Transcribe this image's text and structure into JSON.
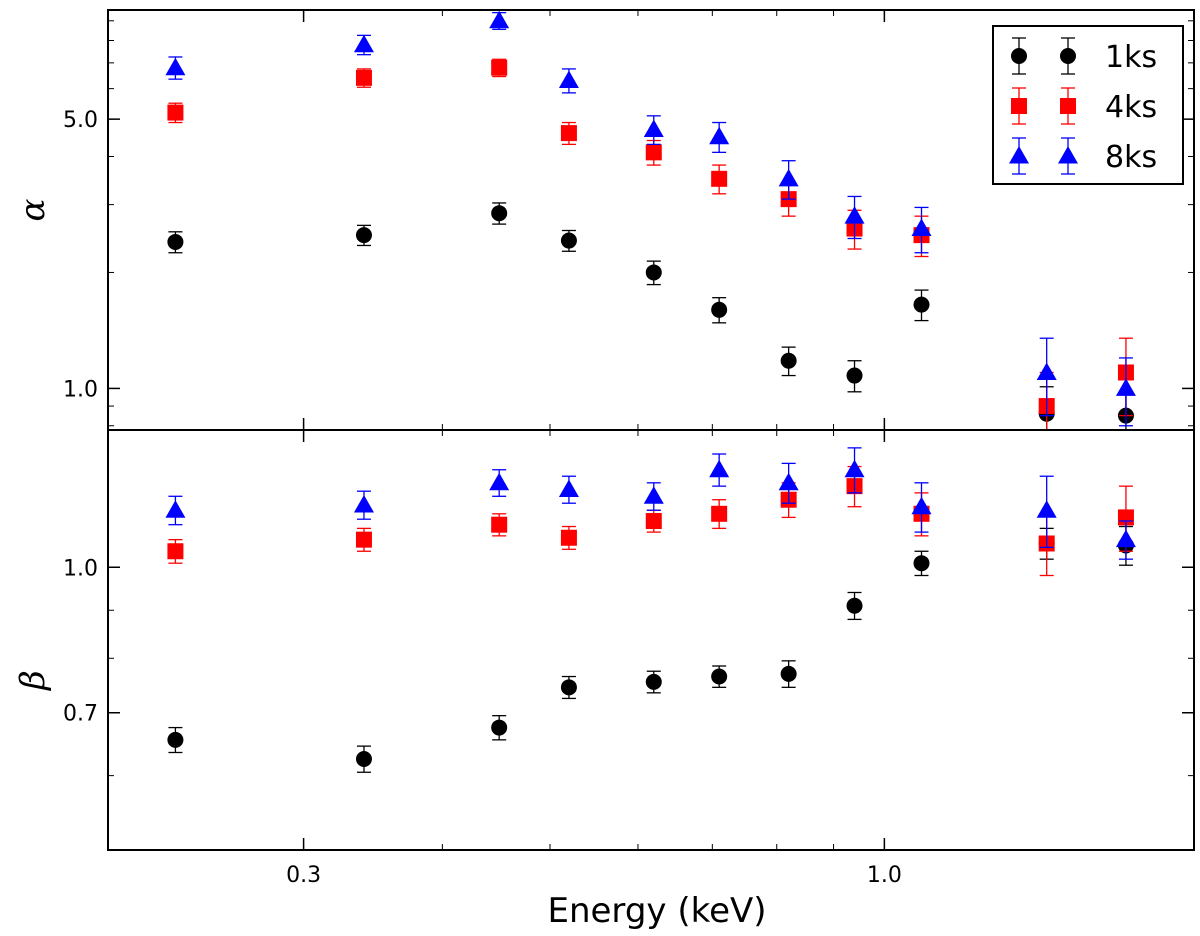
{
  "chart_data": [
    {
      "type": "scatter",
      "panel": "top",
      "ylabel": "α",
      "yscale": "log",
      "ylim": [
        0.78,
        9.6
      ],
      "yticks": [
        1.0,
        5.0
      ],
      "ytick_labels": [
        "1.0",
        "5.0"
      ],
      "series": [
        {
          "name": "1ks",
          "color": "#000000",
          "marker": "circle",
          "x": [
            0.23,
            0.34,
            0.45,
            0.52,
            0.62,
            0.71,
            0.82,
            0.94,
            1.08,
            1.4,
            1.65
          ],
          "y": [
            2.4,
            2.5,
            2.85,
            2.42,
            2.0,
            1.6,
            1.18,
            1.08,
            1.65,
            0.86,
            0.85
          ],
          "err": [
            0.15,
            0.15,
            0.18,
            0.15,
            0.14,
            0.12,
            0.1,
            0.1,
            0.15,
            0.15,
            0.12
          ]
        },
        {
          "name": "4ks",
          "color": "#ff0000",
          "marker": "square",
          "x": [
            0.23,
            0.34,
            0.45,
            0.52,
            0.62,
            0.71,
            0.82,
            0.94,
            1.08,
            1.4,
            1.65
          ],
          "y": [
            5.2,
            6.4,
            6.8,
            4.6,
            4.1,
            3.5,
            3.1,
            2.6,
            2.5,
            0.9,
            1.1
          ],
          "err": [
            0.3,
            0.35,
            0.35,
            0.3,
            0.3,
            0.3,
            0.3,
            0.3,
            0.3,
            0.2,
            0.25
          ]
        },
        {
          "name": "8ks",
          "color": "#0000ff",
          "marker": "triangle",
          "x": [
            0.23,
            0.34,
            0.45,
            0.52,
            0.62,
            0.71,
            0.82,
            0.94,
            1.08,
            1.4,
            1.65
          ],
          "y": [
            6.8,
            7.8,
            9.0,
            6.3,
            4.7,
            4.5,
            3.5,
            2.8,
            2.6,
            1.1,
            1.0
          ],
          "err": [
            0.45,
            0.45,
            0.45,
            0.45,
            0.4,
            0.4,
            0.4,
            0.35,
            0.35,
            0.25,
            0.2
          ]
        }
      ]
    },
    {
      "type": "scatter",
      "panel": "bottom",
      "ylabel": "β",
      "yscale": "log",
      "ylim": [
        0.5,
        1.4
      ],
      "yticks": [
        0.7,
        1.0
      ],
      "ytick_labels": [
        "0.7",
        "1.0"
      ],
      "xlabel": "Energy (keV)",
      "xscale": "log",
      "xlim": [
        0.2,
        1.9
      ],
      "xticks": [
        0.3,
        1.0
      ],
      "xtick_labels": [
        "0.3",
        "1.0"
      ],
      "series": [
        {
          "name": "1ks",
          "color": "#000000",
          "marker": "circle",
          "x": [
            0.23,
            0.34,
            0.45,
            0.52,
            0.62,
            0.71,
            0.82,
            0.94,
            1.08,
            1.4,
            1.65
          ],
          "y": [
            0.655,
            0.625,
            0.675,
            0.745,
            0.755,
            0.765,
            0.77,
            0.91,
            1.01,
            1.06,
            1.055
          ],
          "err": [
            0.02,
            0.02,
            0.02,
            0.02,
            0.02,
            0.02,
            0.025,
            0.03,
            0.03,
            0.04,
            0.05
          ]
        },
        {
          "name": "4ks",
          "color": "#ff0000",
          "marker": "square",
          "x": [
            0.23,
            0.34,
            0.45,
            0.52,
            0.62,
            0.71,
            0.82,
            0.94,
            1.08,
            1.4,
            1.65
          ],
          "y": [
            1.04,
            1.07,
            1.11,
            1.075,
            1.12,
            1.14,
            1.18,
            1.22,
            1.14,
            1.06,
            1.13
          ],
          "err": [
            0.03,
            0.03,
            0.03,
            0.03,
            0.03,
            0.04,
            0.05,
            0.06,
            0.06,
            0.08,
            0.09
          ]
        },
        {
          "name": "8ks",
          "color": "#0000ff",
          "marker": "triangle",
          "x": [
            0.23,
            0.34,
            0.45,
            0.52,
            0.62,
            0.71,
            0.82,
            0.94,
            1.08,
            1.4,
            1.65
          ],
          "y": [
            1.15,
            1.165,
            1.23,
            1.21,
            1.19,
            1.27,
            1.23,
            1.27,
            1.16,
            1.15,
            1.07
          ],
          "err": [
            0.04,
            0.04,
            0.04,
            0.04,
            0.04,
            0.05,
            0.06,
            0.07,
            0.07,
            0.1,
            0.05
          ]
        }
      ]
    }
  ],
  "legend": {
    "placement": "top-right",
    "entries": [
      "1ks",
      "4ks",
      "8ks"
    ]
  }
}
